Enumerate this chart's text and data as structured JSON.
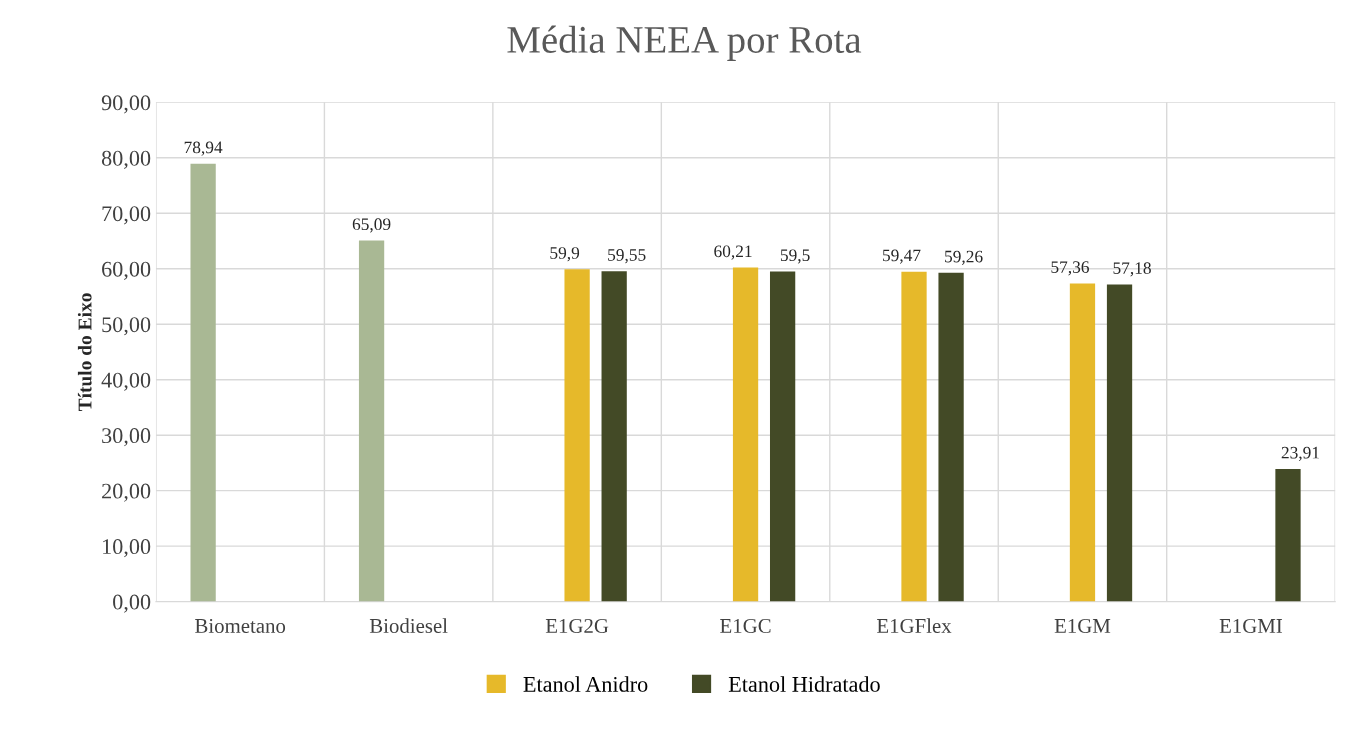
{
  "chart_data": {
    "type": "bar",
    "title": "Média NEEA por Rota",
    "ylabel": "Título do Eixo",
    "categories": [
      "Biometano",
      "Biodiesel",
      "E1G2G",
      "E1GC",
      "E1GFlex",
      "E1GM",
      "E1GMI"
    ],
    "series": [
      {
        "color": "#a9b894",
        "values": [
          78.94,
          65.09,
          null,
          null,
          null,
          null,
          null
        ],
        "value_labels": [
          "78,94",
          "65,09",
          null,
          null,
          null,
          null,
          null
        ]
      },
      {
        "name": "Etanol Anidro",
        "color": "#e6b92a",
        "values": [
          null,
          null,
          59.9,
          60.21,
          59.47,
          57.36,
          null
        ],
        "value_labels": [
          null,
          null,
          "59,9",
          "60,21",
          "59,47",
          "57,36",
          null
        ]
      },
      {
        "name": "Etanol Hidratado",
        "color": "#434a26",
        "values": [
          null,
          null,
          59.55,
          59.5,
          59.26,
          57.18,
          23.91
        ],
        "value_labels": [
          null,
          null,
          "59,55",
          "59,5",
          "59,26",
          "57,18",
          "23,91"
        ]
      }
    ],
    "ylim": [
      0,
      90
    ],
    "yticks": [
      {
        "value": 0,
        "label": "0,00"
      },
      {
        "value": 10,
        "label": "10,00"
      },
      {
        "value": 20,
        "label": "20,00"
      },
      {
        "value": 30,
        "label": "30,00"
      },
      {
        "value": 40,
        "label": "40,00"
      },
      {
        "value": 50,
        "label": "50,00"
      },
      {
        "value": 60,
        "label": "60,00"
      },
      {
        "value": 70,
        "label": "70,00"
      },
      {
        "value": 80,
        "label": "80,00"
      },
      {
        "value": 90,
        "label": "90,00"
      }
    ],
    "grid": true,
    "legend": "bottom"
  }
}
